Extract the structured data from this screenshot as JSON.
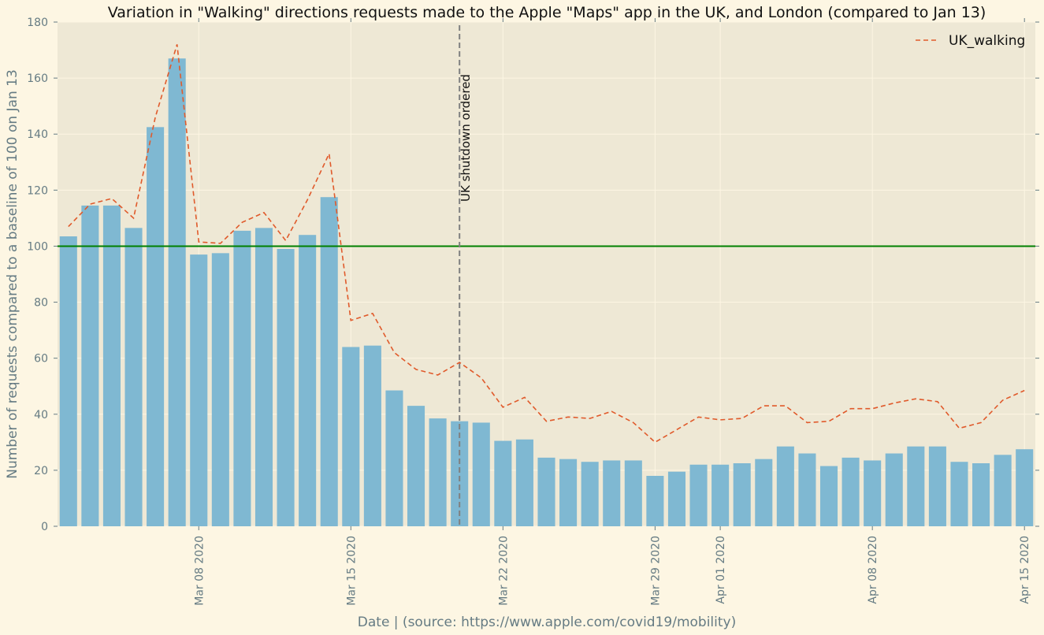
{
  "colors": {
    "figure_bg": "#fdf6e3",
    "plot_bg": "#eee8d5",
    "grid": "#fdf6e3",
    "bar": "#7fb8d2",
    "line": "#e05a2b",
    "baseline": "#008000",
    "annotation_line": "#808080",
    "tick_text": "#657b83"
  },
  "chart_data": {
    "type": "bar",
    "title": "Variation in \"Walking\" directions requests made to the Apple \"Maps\" app in the UK, and London (compared to Jan 13)",
    "xlabel": "Date | (source: https://www.apple.com/covid19/mobility)",
    "ylabel": "Number of requests compared to a baseline of 100 on Jan 13",
    "ylim": [
      0,
      180
    ],
    "yticks": [
      "0",
      "20",
      "40",
      "60",
      "80",
      "100",
      "120",
      "140",
      "160",
      "180"
    ],
    "grid": true,
    "legend_position": "top-right",
    "legend": [
      "UK_walking"
    ],
    "categories": [
      "2020-03-02",
      "2020-03-03",
      "2020-03-04",
      "2020-03-05",
      "2020-03-06",
      "2020-03-07",
      "2020-03-08",
      "2020-03-09",
      "2020-03-10",
      "2020-03-11",
      "2020-03-12",
      "2020-03-13",
      "2020-03-14",
      "2020-03-15",
      "2020-03-16",
      "2020-03-17",
      "2020-03-18",
      "2020-03-19",
      "2020-03-20",
      "2020-03-21",
      "2020-03-22",
      "2020-03-23",
      "2020-03-24",
      "2020-03-25",
      "2020-03-26",
      "2020-03-27",
      "2020-03-28",
      "2020-03-29",
      "2020-03-30",
      "2020-03-31",
      "2020-04-01",
      "2020-04-02",
      "2020-04-03",
      "2020-04-04",
      "2020-04-05",
      "2020-04-06",
      "2020-04-07",
      "2020-04-08",
      "2020-04-09",
      "2020-04-10",
      "2020-04-11",
      "2020-04-12",
      "2020-04-13",
      "2020-04-14",
      "2020-04-15"
    ],
    "xtick_labels": [
      {
        "date": "2020-03-08",
        "label": "Mar 08 2020"
      },
      {
        "date": "2020-03-15",
        "label": "Mar 15 2020"
      },
      {
        "date": "2020-03-22",
        "label": "Mar 22 2020"
      },
      {
        "date": "2020-03-29",
        "label": "Mar 29 2020"
      },
      {
        "date": "2020-04-01",
        "label": "Apr 01 2020"
      },
      {
        "date": "2020-04-08",
        "label": "Apr 08 2020"
      },
      {
        "date": "2020-04-15",
        "label": "Apr 15 2020"
      }
    ],
    "series": [
      {
        "type": "bar",
        "values": [
          103.5,
          114.5,
          114.5,
          106.5,
          142.5,
          167,
          97,
          97.5,
          105.5,
          106.5,
          99,
          104,
          117.5,
          64,
          64.5,
          48.5,
          43,
          38.5,
          37.5,
          37,
          30.5,
          31,
          24.5,
          24,
          23,
          23.5,
          23.5,
          18,
          19.5,
          22,
          22,
          22.5,
          24,
          28.5,
          26,
          21.5,
          24.5,
          23.5,
          26,
          28.5,
          28.5,
          23,
          22.5,
          25.5,
          27.5
        ]
      },
      {
        "type": "line",
        "style": "dashed",
        "name": "UK_walking",
        "values": [
          107,
          115,
          117,
          110,
          146,
          172,
          101.5,
          101,
          108.5,
          112,
          102,
          116.5,
          133,
          73.5,
          76,
          62,
          56,
          54,
          58.5,
          53,
          42.5,
          46,
          37.5,
          39,
          38.5,
          41,
          37,
          30,
          34.5,
          39,
          38,
          38.5,
          43,
          43,
          37,
          37.5,
          42,
          42,
          44,
          45.5,
          44.5,
          35,
          37,
          45,
          48.5
        ]
      }
    ],
    "reference_lines": [
      {
        "orientation": "horizontal",
        "y": 100
      },
      {
        "orientation": "vertical",
        "x": "2020-03-20",
        "style": "dashed",
        "label": "UK shutdown ordered"
      }
    ]
  }
}
